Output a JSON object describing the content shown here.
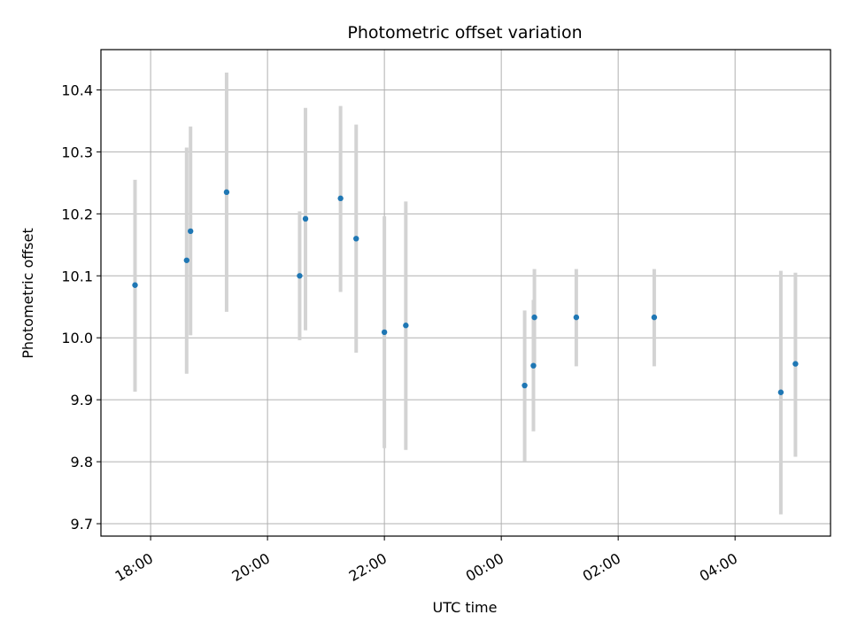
{
  "chart_data": {
    "type": "scatter",
    "title": "Photometric offset variation",
    "xlabel": "UTC time",
    "ylabel": "Photometric offset",
    "xlim": [
      "17:09",
      "05:38"
    ],
    "ylim": [
      9.68,
      10.465
    ],
    "grid": true,
    "x_ticks": [
      "18:00",
      "20:00",
      "22:00",
      "00:00",
      "02:00",
      "04:00"
    ],
    "y_ticks": [
      "9.7",
      "9.8",
      "9.9",
      "10.0",
      "10.1",
      "10.2",
      "10.3",
      "10.4"
    ],
    "x_tick_values": [
      "18:00",
      "20:00",
      "22:00",
      "00:00",
      "02:00",
      "04:00"
    ],
    "y_tick_values": [
      9.7,
      9.8,
      9.9,
      10.0,
      10.1,
      10.2,
      10.3,
      10.4
    ],
    "points": [
      {
        "time": "17:44",
        "value": 10.085,
        "low": 9.913,
        "high": 10.255
      },
      {
        "time": "18:37",
        "value": 10.125,
        "low": 9.942,
        "high": 10.307
      },
      {
        "time": "18:41",
        "value": 10.172,
        "low": 10.004,
        "high": 10.341
      },
      {
        "time": "19:18",
        "value": 10.235,
        "low": 10.042,
        "high": 10.428
      },
      {
        "time": "20:33",
        "value": 10.1,
        "low": 9.996,
        "high": 10.204
      },
      {
        "time": "20:39",
        "value": 10.192,
        "low": 10.012,
        "high": 10.371
      },
      {
        "time": "21:15",
        "value": 10.225,
        "low": 10.074,
        "high": 10.374
      },
      {
        "time": "21:31",
        "value": 10.16,
        "low": 9.976,
        "high": 10.344
      },
      {
        "time": "22:00",
        "value": 10.009,
        "low": 9.822,
        "high": 10.196
      },
      {
        "time": "22:22",
        "value": 10.02,
        "low": 9.819,
        "high": 10.22
      },
      {
        "time": "00:24",
        "value": 9.923,
        "low": 9.801,
        "high": 10.044
      },
      {
        "time": "00:33",
        "value": 9.955,
        "low": 9.849,
        "high": 10.061
      },
      {
        "time": "00:34",
        "value": 10.033,
        "low": 9.954,
        "high": 10.111
      },
      {
        "time": "01:17",
        "value": 10.033,
        "low": 9.954,
        "high": 10.111
      },
      {
        "time": "02:37",
        "value": 10.033,
        "low": 9.954,
        "high": 10.111
      },
      {
        "time": "04:47",
        "value": 9.912,
        "low": 9.715,
        "high": 10.108
      },
      {
        "time": "05:02",
        "value": 9.958,
        "low": 9.808,
        "high": 10.105
      }
    ],
    "colors": {
      "marker": "#1f77b4",
      "errorbar": "#d3d3d3",
      "grid": "#b0b0b0",
      "axes": "#000000"
    }
  }
}
